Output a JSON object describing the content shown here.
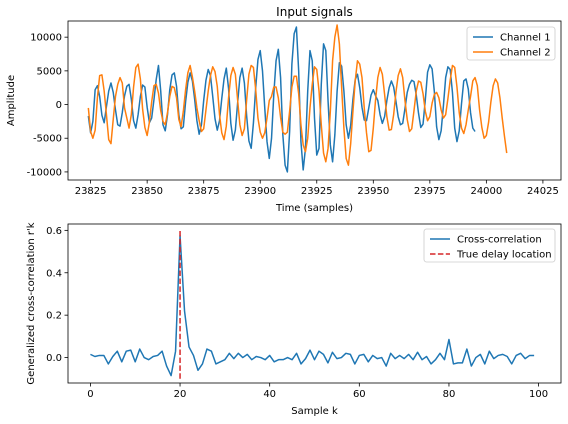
{
  "chart_data": [
    {
      "type": "line",
      "title": "Input signals",
      "xlabel": "Time (samples)",
      "ylabel": "Amplitude",
      "xlim": [
        23815,
        24033
      ],
      "ylim": [
        -11200,
        12400
      ],
      "xticks": [
        23825,
        23850,
        23875,
        23900,
        23925,
        23950,
        23975,
        24000,
        24025
      ],
      "yticks": [
        -10000,
        -5000,
        0,
        5000,
        10000
      ],
      "legend": "top-right",
      "grid": false,
      "x_start": 23824,
      "x_step": 1,
      "series": [
        {
          "name": "Channel 1",
          "color": "#1f77b4",
          "values": [
            -1700,
            -4200,
            -2500,
            2200,
            2800,
            1200,
            -1600,
            -2700,
            -300,
            2000,
            3200,
            1800,
            -800,
            -3000,
            -3200,
            -1200,
            1300,
            2700,
            3000,
            800,
            -2400,
            -3500,
            -1500,
            1200,
            2900,
            2600,
            -400,
            -2700,
            -2000,
            700,
            3700,
            5800,
            2000,
            -3000,
            -3900,
            -1500,
            2200,
            4400,
            4700,
            2700,
            -1500,
            -3600,
            -3300,
            400,
            3300,
            4700,
            3500,
            800,
            -2400,
            -4400,
            -3000,
            600,
            3600,
            5200,
            4300,
            1200,
            -2100,
            -3800,
            -2400,
            900,
            3800,
            5400,
            2400,
            -2800,
            -5300,
            -3800,
            200,
            4000,
            5400,
            3200,
            -1700,
            -5400,
            -6500,
            -2700,
            2500,
            6700,
            8000,
            5000,
            -500,
            -5500,
            -8000,
            -5000,
            1500,
            6500,
            8200,
            4000,
            -4500,
            -9000,
            -10000,
            -4000,
            6000,
            10500,
            11500,
            5000,
            -5500,
            -9700,
            -6500,
            2000,
            8000,
            6500,
            -2000,
            -7500,
            -6500,
            3000,
            9000,
            8000,
            500,
            -6000,
            -8500,
            -4500,
            2000,
            6200,
            5700,
            2000,
            -3000,
            -5000,
            -3100,
            800,
            3700,
            4500,
            2500,
            -400,
            -2300,
            -2400,
            -500,
            1400,
            2200,
            1300,
            600,
            -1500,
            -2800,
            -1800,
            600,
            2500,
            3500,
            2600,
            500,
            -1800,
            -3000,
            -2800,
            -600,
            1800,
            3000,
            3600,
            3400,
            1400,
            -1300,
            -3400,
            -2900,
            700,
            4800,
            5900,
            5300,
            1900,
            -3300,
            -5200,
            -3900,
            -200,
            4000,
            5600,
            5200,
            1800,
            -3500,
            -5500,
            -3900,
            100,
            3500,
            3800,
            2300,
            -1200,
            -3500,
            -4000
          ]
        },
        {
          "name": "Channel 2",
          "color": "#ff7f0e",
          "values": [
            -500,
            -4000,
            -5000,
            -3800,
            1000,
            4300,
            4400,
            2000,
            -1500,
            -5200,
            -5800,
            -2200,
            1200,
            3000,
            4000,
            3200,
            -500,
            -2000,
            -3500,
            -1500,
            2600,
            5500,
            6000,
            3800,
            -700,
            -3400,
            -4600,
            -2600,
            400,
            2800,
            3000,
            1700,
            -900,
            -2500,
            -3000,
            -1200,
            1200,
            2700,
            2500,
            1000,
            -2200,
            -3300,
            -1000,
            2200,
            4700,
            5800,
            4100,
            2000,
            -500,
            -2400,
            -4000,
            -3600,
            -800,
            2000,
            4300,
            5600,
            4900,
            2700,
            -1500,
            -4200,
            -5200,
            -3200,
            1000,
            4300,
            5500,
            4500,
            700,
            -3000,
            -4600,
            -3600,
            700,
            4500,
            5800,
            5500,
            2200,
            -2000,
            -4100,
            -5000,
            -4200,
            -2000,
            600,
            1200,
            2600,
            2600,
            1000,
            -1900,
            -4100,
            -4400,
            -4100,
            -1000,
            2600,
            4200,
            4200,
            1600,
            -3000,
            -6000,
            -7000,
            -5000,
            -500,
            3000,
            5600,
            5200,
            2000,
            -3000,
            -7200,
            -8500,
            -6500,
            -1000,
            6500,
            10000,
            11800,
            9000,
            2500,
            -3500,
            -8000,
            -9000,
            -5800,
            -1000,
            3500,
            6500,
            6000,
            4000,
            -500,
            -4200,
            -7000,
            -6800,
            -3500,
            700,
            4000,
            5500,
            4500,
            1500,
            -1800,
            -3800,
            -3700,
            -1500,
            1800,
            4300,
            5300,
            4000,
            600,
            -2200,
            -4000,
            -3600,
            -900,
            2000,
            3500,
            3300,
            1600,
            -1000,
            -2400,
            -1800,
            200,
            1500,
            1800,
            1000,
            -800,
            -2000,
            -1500,
            900,
            3600,
            5800,
            5500,
            2600,
            -1200,
            -3500,
            -4300,
            -3000,
            -800,
            1200,
            3500,
            4000,
            2800,
            -800,
            -3400,
            -5000,
            -4600,
            -2600,
            400,
            2800,
            3800,
            3200,
            1000,
            -2000,
            -4700,
            -7200
          ]
        }
      ]
    },
    {
      "type": "line",
      "title": "",
      "xlabel": "Sample k",
      "ylabel": "Generalized cross-correlation r'k",
      "xlim": [
        -5,
        105
      ],
      "ylim": [
        -0.12,
        0.63
      ],
      "xticks": [
        0,
        20,
        40,
        60,
        80,
        100
      ],
      "yticks": [
        0.0,
        0.2,
        0.4,
        0.6
      ],
      "legend": "top-right",
      "grid": false,
      "x_start": 0,
      "x_step": 1,
      "series": [
        {
          "name": "Cross-correlation",
          "color": "#1f77b4",
          "values": [
            0.015,
            0.005,
            0.01,
            0.01,
            -0.03,
            0.005,
            0.03,
            -0.02,
            0.03,
            0.035,
            -0.02,
            0.04,
            0.0,
            -0.01,
            0.005,
            0.01,
            0.03,
            -0.04,
            -0.085,
            0.03,
            0.575,
            0.22,
            0.05,
            0.01,
            -0.06,
            -0.03,
            0.04,
            0.03,
            -0.03,
            -0.02,
            -0.01,
            0.02,
            -0.005,
            0.02,
            0.0,
            0.015,
            -0.01,
            0.005,
            0.0,
            -0.01,
            0.01,
            -0.02,
            -0.01,
            -0.01,
            0.0,
            -0.01,
            0.02,
            -0.03,
            -0.005,
            0.035,
            -0.01,
            0.03,
            0.015,
            -0.025,
            0.025,
            -0.005,
            0.0,
            0.02,
            0.015,
            -0.03,
            0.01,
            0.015,
            -0.02,
            0.01,
            -0.005,
            0.0,
            -0.04,
            0.02,
            -0.005,
            0.01,
            -0.005,
            0.015,
            -0.01,
            0.025,
            -0.01,
            0.005,
            -0.03,
            -0.01,
            0.02,
            -0.01,
            0.085,
            -0.03,
            -0.025,
            -0.025,
            0.04,
            -0.04,
            0.0,
            0.015,
            -0.03,
            0.03,
            -0.005,
            0.01,
            0.015,
            0.005,
            -0.03,
            0.01,
            0.02,
            -0.005,
            0.01,
            0.01
          ]
        },
        {
          "name": "True delay location",
          "color": "#d62728",
          "x": [
            20,
            20
          ],
          "values": [
            -0.1,
            0.6
          ],
          "dashed": true
        }
      ]
    }
  ]
}
